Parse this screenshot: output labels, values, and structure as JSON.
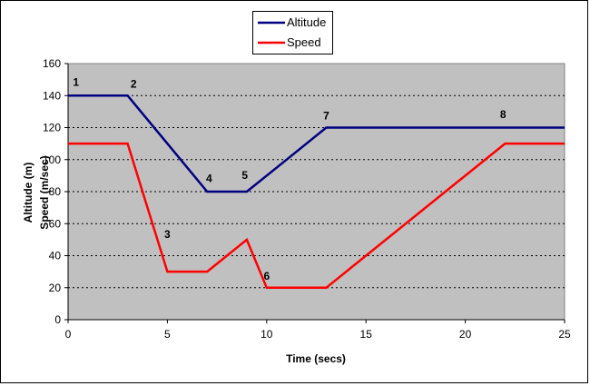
{
  "chart_data": {
    "type": "line",
    "title": "",
    "xlabel": "Time (secs)",
    "ylabel_lines": [
      "Altitude (m)",
      "Speed (m/sec)"
    ],
    "xlim": [
      0,
      25
    ],
    "ylim": [
      0,
      160
    ],
    "x_ticks": [
      "0",
      "5",
      "10",
      "15",
      "20",
      "25"
    ],
    "y_ticks": [
      "0",
      "20",
      "40",
      "60",
      "80",
      "100",
      "120",
      "140",
      "160"
    ],
    "grid": "horizontal-dashed",
    "legend_position": "top-center",
    "series": [
      {
        "name": "Altitude",
        "color": "#000080",
        "points": [
          [
            0,
            140
          ],
          [
            3,
            140
          ],
          [
            5,
            110
          ],
          [
            7,
            80
          ],
          [
            9,
            80
          ],
          [
            11,
            100
          ],
          [
            13,
            120
          ],
          [
            25,
            120
          ]
        ]
      },
      {
        "name": "Speed",
        "color": "#ff0000",
        "points": [
          [
            0,
            110
          ],
          [
            3,
            110
          ],
          [
            5,
            30
          ],
          [
            7,
            30
          ],
          [
            9,
            50
          ],
          [
            10,
            20
          ],
          [
            13,
            20
          ],
          [
            22,
            110
          ],
          [
            25,
            110
          ]
        ]
      }
    ],
    "annotations": [
      {
        "text": "1",
        "x": 0.4,
        "y": 146
      },
      {
        "text": "2",
        "x": 3.3,
        "y": 145
      },
      {
        "text": "3",
        "x": 5.0,
        "y": 51
      },
      {
        "text": "4",
        "x": 7.1,
        "y": 86
      },
      {
        "text": "5",
        "x": 8.9,
        "y": 88
      },
      {
        "text": "6",
        "x": 10.0,
        "y": 25
      },
      {
        "text": "7",
        "x": 13.0,
        "y": 125
      },
      {
        "text": "8",
        "x": 21.9,
        "y": 126
      }
    ]
  }
}
